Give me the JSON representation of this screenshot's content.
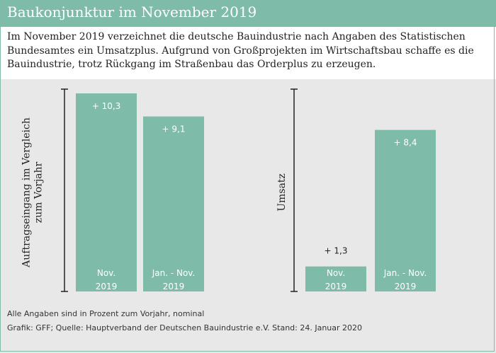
{
  "header": {
    "title": "Baukonjunktur im November 2019"
  },
  "intro": {
    "lines": [
      "Im November 2019 verzeichnet die deutsche Bauindustrie nach Angaben des Statistischen",
      "Bundesamtes ein Umsatzplus. Aufgrund von Großprojekten im Wirtschaftsbau schaffe es die",
      "Bauindustrie, trotz Rückgang im Straßenbau das Orderplus zu erzeugen."
    ]
  },
  "colors": {
    "accent": "#7fbba9",
    "panel": "#e8e8e8",
    "axis": "#222222"
  },
  "chart_data": [
    {
      "type": "bar",
      "ylabel": "Auftragseingang im Vergleich zum Vorjahr",
      "ylabel_lines": [
        "Auftragseingang im Vergleich",
        "zum Vorjahr"
      ],
      "categories": [
        [
          "Nov.",
          "2019"
        ],
        [
          "Jan. - Nov.",
          "2019"
        ]
      ],
      "values": [
        10.3,
        9.1
      ],
      "value_labels": [
        "+ 10,3",
        "+ 9,1"
      ],
      "ylim": [
        0,
        10.3
      ]
    },
    {
      "type": "bar",
      "ylabel": "Umsatz",
      "ylabel_lines": [
        "Umsatz"
      ],
      "categories": [
        [
          "Nov.",
          "2019"
        ],
        [
          "Jan. - Nov.",
          "2019"
        ]
      ],
      "values": [
        1.3,
        8.4
      ],
      "value_labels": [
        "+ 1,3",
        "+ 8,4"
      ],
      "ylim": [
        0,
        10.3
      ]
    }
  ],
  "footer": {
    "note": "Alle Angaben sind in Prozent zum Vorjahr, nominal",
    "source": "Grafik: GFF; Quelle: Hauptverband der Deutschen Bauindustrie e.V. Stand: 24. Januar 2020"
  }
}
